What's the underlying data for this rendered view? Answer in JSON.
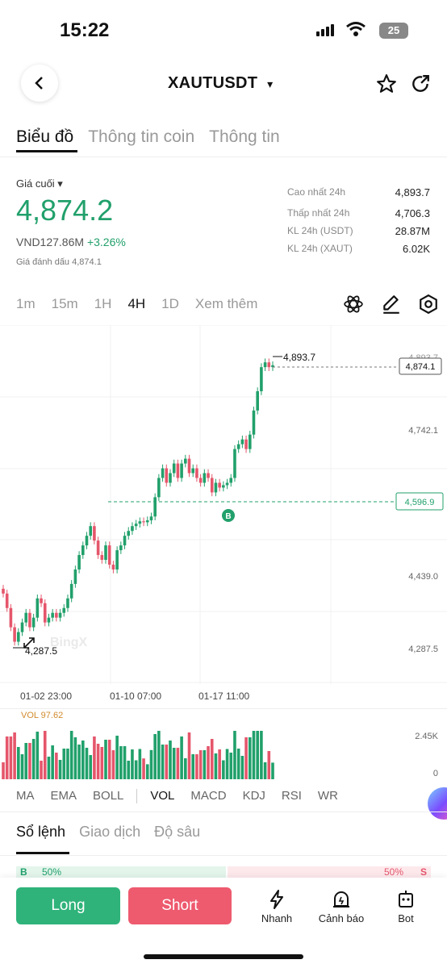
{
  "status": {
    "time": "15:22",
    "battery": "25"
  },
  "header": {
    "pair": "XAUTUSDT",
    "pair_caret": "▾"
  },
  "tabs": [
    "Biểu đồ",
    "Thông tin coin",
    "Thông tin"
  ],
  "price": {
    "label": "Giá cuối ▾",
    "last": "4,874.2",
    "vnd": "VND127.86M",
    "change": "+3.26%",
    "mark": "Giá đánh dấu 4,874.1"
  },
  "stats": [
    {
      "label": "Cao nhất 24h",
      "value": "4,893.7"
    },
    {
      "label": "Thấp nhất 24h",
      "value": "4,706.3"
    },
    {
      "label": "KL 24h (USDT)",
      "value": "28.87M"
    },
    {
      "label": "KL 24h (XAUT)",
      "value": "6.02K"
    }
  ],
  "timeframes": [
    "1m",
    "15m",
    "1H",
    "4H",
    "1D",
    "Xem thêm"
  ],
  "chart": {
    "y_labels": [
      "4,893.7",
      "4,742.1",
      "4,596.9",
      "4,439.0",
      "4,287.5"
    ],
    "high_label": "4,893.7",
    "low_label": "4,287.5",
    "last_tag": "4,874.1",
    "entry_tag": "4,596.9",
    "buy_marker": "B",
    "watermark": "BingX",
    "x_labels": [
      "01-02 23:00",
      "01-10 07:00",
      "01-17 11:00"
    ],
    "up_color": "#21a06b",
    "down_color": "#e5566b"
  },
  "chart_data": {
    "type": "candlestick",
    "ylim": [
      4287.5,
      4893.7
    ],
    "high": 4893.7,
    "low": 4287.5,
    "last": 4874.1,
    "entry": 4596.9,
    "closes": [
      4400,
      4370,
      4330,
      4300,
      4320,
      4340,
      4360,
      4330,
      4350,
      4390,
      4380,
      4340,
      4350,
      4360,
      4350,
      4360,
      4370,
      4390,
      4420,
      4450,
      4480,
      4500,
      4520,
      4540,
      4510,
      4480,
      4470,
      4500,
      4460,
      4450,
      4490,
      4500,
      4520,
      4530,
      4540,
      4545,
      4550,
      4548,
      4552,
      4560,
      4600,
      4640,
      4660,
      4630,
      4650,
      4670,
      4640,
      4670,
      4680,
      4650,
      4660,
      4640,
      4630,
      4650,
      4640,
      4610,
      4630,
      4620,
      4625,
      4630,
      4640,
      4700,
      4710,
      4720,
      4700,
      4730,
      4780,
      4820,
      4870,
      4880,
      4870,
      4874
    ],
    "volume_max_label": "2.45K",
    "volume_min_label": "0",
    "vol_indicator": "VOL 97.62"
  },
  "indicators": [
    "MA",
    "EMA",
    "BOLL",
    "VOL",
    "MACD",
    "KDJ",
    "RSI",
    "WR"
  ],
  "orderbook_tabs": [
    "Sổ lệnh",
    "Giao dịch",
    "Độ sâu"
  ],
  "orderbook": {
    "buy_pct": "50%",
    "sell_pct": "50%",
    "b": "B",
    "s": "S"
  },
  "actions": {
    "long": "Long",
    "short": "Short",
    "quick": "Nhanh",
    "alert": "Cảnh báo",
    "bot": "Bot"
  }
}
